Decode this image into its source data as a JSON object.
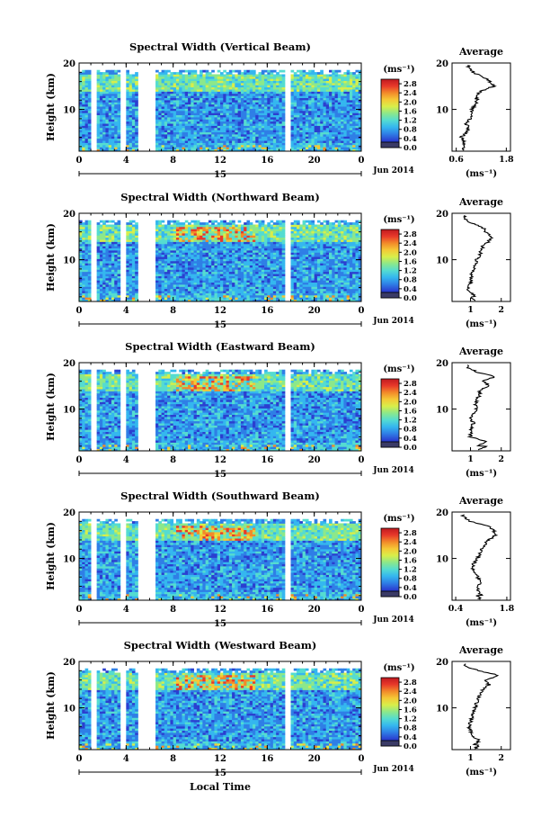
{
  "figure": {
    "colorbar_unit": "(ms⁻¹)",
    "colorbar_ticks": [
      "0.0",
      "0.4",
      "0.8",
      "1.2",
      "1.6",
      "2.0",
      "2.4",
      "2.8"
    ],
    "y_axis_label": "Height (km)",
    "x_ticks": [
      "0",
      "4",
      "8",
      "12",
      "16",
      "20",
      "0"
    ],
    "day_label": "15",
    "date_label": "Jun 2014",
    "x_axis_label": "Local Time",
    "average_title": "Average",
    "average_unit": "(ms⁻¹)",
    "y_ticks": [
      "20",
      "10"
    ],
    "colorscale": [
      "#1c1a78",
      "#2b3fd0",
      "#2f7fe6",
      "#35b7ef",
      "#55dcd0",
      "#8ce88a",
      "#d8ee4a",
      "#f5c836",
      "#f28a2a",
      "#e8392a",
      "#c01a20"
    ]
  },
  "chart_data": [
    {
      "type": "heatmap",
      "title": "Spectral Width (Vertical Beam)",
      "x_range": [
        0,
        24
      ],
      "y_range": [
        1,
        20
      ],
      "color_range": [
        0,
        3.0
      ],
      "data_gaps_hours": [
        [
          1.0,
          1.5
        ],
        [
          3.4,
          3.9
        ],
        [
          5.0,
          6.5
        ],
        [
          17.6,
          18.1
        ]
      ],
      "average_profile": {
        "x_ticks": [
          "0.6",
          "1.8"
        ],
        "x_range": [
          0.5,
          1.9
        ],
        "height_km": [
          2,
          3,
          4,
          5,
          6,
          7,
          8,
          9,
          10,
          11,
          12,
          13,
          14,
          15,
          16,
          17,
          18,
          19
        ],
        "width": [
          0.75,
          0.8,
          0.72,
          0.85,
          0.9,
          0.82,
          0.95,
          1.0,
          0.98,
          1.05,
          1.1,
          1.05,
          1.2,
          1.5,
          1.4,
          1.25,
          1.0,
          0.9
        ]
      }
    },
    {
      "type": "heatmap",
      "title": "Spectral Width (Northward Beam)",
      "x_range": [
        0,
        24
      ],
      "y_range": [
        1,
        20
      ],
      "color_range": [
        0,
        3.0
      ],
      "data_gaps_hours": [
        [
          1.0,
          1.5
        ],
        [
          3.4,
          3.9
        ],
        [
          5.0,
          6.5
        ],
        [
          17.6,
          18.0
        ]
      ],
      "average_profile": {
        "x_ticks": [
          "1",
          "2"
        ],
        "x_range": [
          0.4,
          2.3
        ],
        "height_km": [
          2,
          3,
          4,
          5,
          6,
          7,
          8,
          9,
          10,
          11,
          12,
          13,
          14,
          15,
          16,
          17,
          18,
          19
        ],
        "width": [
          1.2,
          1.0,
          0.9,
          1.0,
          1.0,
          1.05,
          1.1,
          1.15,
          1.2,
          1.3,
          1.35,
          1.4,
          1.6,
          1.7,
          1.5,
          1.4,
          1.0,
          0.8
        ]
      }
    },
    {
      "type": "heatmap",
      "title": "Spectral Width (Eastward Beam)",
      "x_range": [
        0,
        24
      ],
      "y_range": [
        1,
        20
      ],
      "color_range": [
        0,
        3.0
      ],
      "data_gaps_hours": [
        [
          1.0,
          1.5
        ],
        [
          3.4,
          3.9
        ],
        [
          5.0,
          6.5
        ],
        [
          17.6,
          18.0
        ]
      ],
      "average_profile": {
        "x_ticks": [
          "1",
          "2"
        ],
        "x_range": [
          0.4,
          2.3
        ],
        "height_km": [
          2,
          3,
          4,
          5,
          6,
          7,
          8,
          9,
          10,
          11,
          12,
          13,
          14,
          15,
          16,
          17,
          18,
          19
        ],
        "width": [
          1.2,
          1.5,
          1.0,
          1.0,
          1.05,
          1.1,
          1.0,
          1.1,
          1.2,
          1.15,
          1.2,
          1.3,
          1.3,
          1.6,
          1.4,
          1.8,
          1.2,
          0.9
        ]
      }
    },
    {
      "type": "heatmap",
      "title": "Spectral Width (Southward Beam)",
      "x_range": [
        0,
        24
      ],
      "y_range": [
        1,
        20
      ],
      "color_range": [
        0,
        3.0
      ],
      "data_gaps_hours": [
        [
          1.0,
          1.5
        ],
        [
          3.4,
          3.9
        ],
        [
          5.0,
          6.5
        ],
        [
          17.6,
          18.0
        ]
      ],
      "average_profile": {
        "x_ticks": [
          "0.4",
          "1.8"
        ],
        "x_range": [
          0.3,
          1.9
        ],
        "height_km": [
          2,
          3,
          4,
          5,
          6,
          7,
          8,
          9,
          10,
          11,
          12,
          13,
          14,
          15,
          16,
          17,
          18,
          19
        ],
        "width": [
          1.1,
          1.0,
          1.0,
          1.1,
          1.0,
          0.9,
          0.85,
          0.9,
          1.0,
          1.05,
          1.1,
          1.2,
          1.3,
          1.5,
          1.45,
          1.3,
          0.8,
          0.6
        ]
      }
    },
    {
      "type": "heatmap",
      "title": "Spectral Width (Westward Beam)",
      "x_range": [
        0,
        24
      ],
      "y_range": [
        1,
        20
      ],
      "color_range": [
        0,
        3.0
      ],
      "data_gaps_hours": [
        [
          1.0,
          1.5
        ],
        [
          3.4,
          3.9
        ],
        [
          5.0,
          6.5
        ],
        [
          17.6,
          18.0
        ]
      ],
      "average_profile": {
        "x_ticks": [
          "1",
          "2"
        ],
        "x_range": [
          0.4,
          2.3
        ],
        "height_km": [
          2,
          3,
          4,
          5,
          6,
          7,
          8,
          9,
          10,
          11,
          12,
          13,
          14,
          15,
          16,
          17,
          18,
          19
        ],
        "width": [
          1.1,
          1.3,
          1.0,
          1.0,
          0.95,
          1.0,
          1.05,
          1.1,
          1.15,
          1.2,
          1.25,
          1.3,
          1.4,
          1.6,
          1.5,
          1.9,
          1.3,
          0.8
        ]
      }
    }
  ]
}
